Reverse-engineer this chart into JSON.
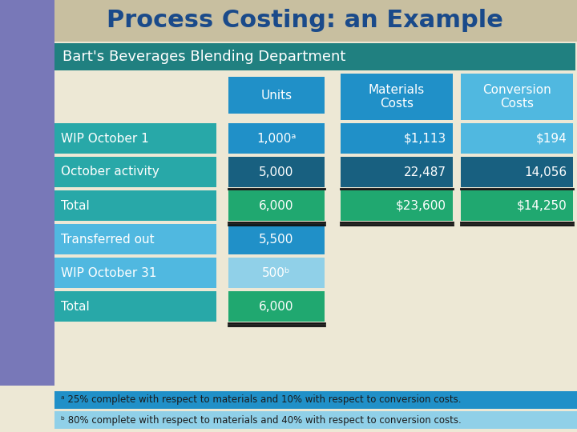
{
  "title": "Process Costing: an Example",
  "subtitle": "Bart's Beverages Blending Department",
  "title_bg": "#c8bfa0",
  "title_color": "#1a4a8a",
  "subtitle_bg": "#208080",
  "subtitle_color": "#ffffff",
  "bg_color": "#ede8d5",
  "left_panel_color": "#7878b8",
  "col_headers": [
    "Units",
    "Materials\nCosts",
    "Conversion\nCosts"
  ],
  "col_header_colors": [
    "#2090c8",
    "#2090c8",
    "#50b8e0"
  ],
  "col_header_text_color": "#ffffff",
  "rows": [
    {
      "label": "WIP October 1",
      "label_bg": "#28a8a8",
      "label_text": "#ffffff",
      "units": "1,000ᵃ",
      "units_bg": "#2090c8",
      "units_text": "#ffffff",
      "mat": "$1,113",
      "mat_bg": "#2090c8",
      "mat_text": "#ffffff",
      "conv": "$194",
      "conv_bg": "#50b8e0",
      "conv_text": "#ffffff",
      "underline": false,
      "double_underline": false
    },
    {
      "label": "October activity",
      "label_bg": "#28a8a8",
      "label_text": "#ffffff",
      "units": "5,000",
      "units_bg": "#186080",
      "units_text": "#ffffff",
      "mat": "22,487",
      "mat_bg": "#186080",
      "mat_text": "#ffffff",
      "conv": "14,056",
      "conv_bg": "#186080",
      "conv_text": "#ffffff",
      "underline": true,
      "double_underline": false
    },
    {
      "label": "Total",
      "label_bg": "#28a8a8",
      "label_text": "#ffffff",
      "units": "6,000",
      "units_bg": "#20a870",
      "units_text": "#ffffff",
      "mat": "$23,600",
      "mat_bg": "#20a870",
      "mat_text": "#ffffff",
      "conv": "$14,250",
      "conv_bg": "#20a870",
      "conv_text": "#ffffff",
      "underline": false,
      "double_underline": true
    },
    {
      "label": "Transferred out",
      "label_bg": "#50b8e0",
      "label_text": "#ffffff",
      "units": "5,500",
      "units_bg": "#2090c8",
      "units_text": "#ffffff",
      "mat": "",
      "mat_bg": null,
      "mat_text": "#ffffff",
      "conv": "",
      "conv_bg": null,
      "conv_text": "#ffffff",
      "underline": false,
      "double_underline": false
    },
    {
      "label": "WIP October 31",
      "label_bg": "#50b8e0",
      "label_text": "#ffffff",
      "units": "500ᵇ",
      "units_bg": "#90d0e8",
      "units_text": "#ffffff",
      "mat": "",
      "mat_bg": null,
      "mat_text": "#ffffff",
      "conv": "",
      "conv_bg": null,
      "conv_text": "#ffffff",
      "underline": false,
      "double_underline": false
    },
    {
      "label": "Total",
      "label_bg": "#28a8a8",
      "label_text": "#ffffff",
      "units": "6,000",
      "units_bg": "#20a870",
      "units_text": "#ffffff",
      "mat": "",
      "mat_bg": null,
      "mat_text": "#ffffff",
      "conv": "",
      "conv_bg": null,
      "conv_text": "#ffffff",
      "underline": false,
      "double_underline": true
    }
  ],
  "footnote_a": "ᵃ 25% complete with respect to materials and 10% with respect to conversion costs.",
  "footnote_b": "ᵇ 80% complete with respect to materials and 40% with respect to conversion costs.",
  "footnote_bg_a": "#2090c8",
  "footnote_bg_b": "#90d0e8",
  "footnote_text_color": "#1a1a1a"
}
